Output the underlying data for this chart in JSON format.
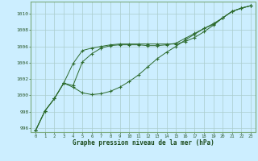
{
  "background_color": "#cceeff",
  "grid_color": "#aacccc",
  "line_color": "#2d6b2d",
  "marker_color": "#2d6b2d",
  "xlabel": "Graphe pression niveau de la mer (hPa)",
  "xlim": [
    -0.5,
    23.5
  ],
  "ylim": [
    995.5,
    1011.5
  ],
  "yticks": [
    996,
    998,
    1000,
    1002,
    1004,
    1006,
    1008,
    1010
  ],
  "xticks": [
    0,
    1,
    2,
    3,
    4,
    5,
    6,
    7,
    8,
    9,
    10,
    11,
    12,
    13,
    14,
    15,
    16,
    17,
    18,
    19,
    20,
    21,
    22,
    23
  ],
  "series1": [
    995.7,
    998.1,
    999.6,
    1001.5,
    1003.9,
    1005.5,
    1005.8,
    1006.0,
    1006.2,
    1006.3,
    1006.3,
    1006.3,
    1006.3,
    1006.3,
    1006.3,
    1006.3,
    1006.6,
    1007.1,
    1007.8,
    1008.6,
    1009.5,
    1010.3,
    1010.7,
    1011.0
  ],
  "series2": [
    995.7,
    998.1,
    999.6,
    1001.5,
    1001.2,
    1004.1,
    1005.1,
    1005.8,
    1006.1,
    1006.2,
    1006.2,
    1006.2,
    1006.1,
    1006.1,
    1006.2,
    1006.4,
    1007.0,
    1007.6,
    1008.2,
    1008.7,
    1009.5,
    1010.3,
    1010.7,
    1011.0
  ],
  "series3": [
    995.7,
    998.1,
    999.6,
    1001.5,
    1001.0,
    1000.3,
    1000.1,
    1000.2,
    1000.5,
    1001.0,
    1001.7,
    1002.5,
    1003.5,
    1004.5,
    1005.3,
    1006.0,
    1006.8,
    1007.5,
    1008.2,
    1008.8,
    1009.5,
    1010.3,
    1010.7,
    1011.0
  ]
}
